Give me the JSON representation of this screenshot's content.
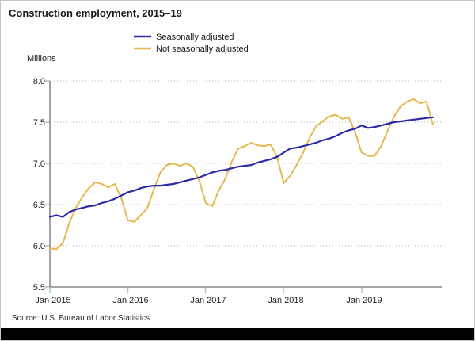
{
  "title": "Construction employment, 2015–19",
  "y_axis_unit": "Millions",
  "source": "Source: U.S. Bureau of Labor Statistics.",
  "y_ticks": [
    "8.0",
    "7.5",
    "7.0",
    "6.5",
    "6.0",
    "5.5"
  ],
  "x_ticks": [
    "Jan 2015",
    "Jan 2016",
    "Jan 2017",
    "Jan 2018",
    "Jan 2019"
  ],
  "legend": [
    {
      "label": "Seasonally adjusted",
      "color": "#2b2baa"
    },
    {
      "label": "Not seasonally adjusted",
      "color": "#e5b84d"
    }
  ],
  "colors": {
    "seasonally_adjusted": "#2b2baa",
    "not_seasonally_adjusted": "#e5b84d",
    "gridline": "#b3b3b3",
    "axis": "#6f6f6f",
    "tick_mark": "#a9c4d5",
    "bottom_bar": "#000000"
  },
  "chart_data": {
    "type": "line",
    "title": "Construction employment, 2015–19",
    "ylabel": "Millions",
    "ylim": [
      5.5,
      8.0
    ],
    "y_tick_step": 0.5,
    "grid": "horizontal dotted",
    "legend_position": "top-center",
    "x_range": {
      "start": "Jan 2015",
      "end": "Dec 2019",
      "interval": "monthly",
      "points": 60
    },
    "x_tick_labels": [
      "Jan 2015",
      "Jan 2016",
      "Jan 2017",
      "Jan 2018",
      "Jan 2019"
    ],
    "series": [
      {
        "name": "Seasonally adjusted",
        "color": "#2b2baa",
        "values": [
          6.35,
          6.37,
          6.35,
          6.41,
          6.44,
          6.46,
          6.48,
          6.49,
          6.52,
          6.54,
          6.57,
          6.61,
          6.65,
          6.67,
          6.7,
          6.72,
          6.73,
          6.73,
          6.74,
          6.75,
          6.77,
          6.79,
          6.81,
          6.83,
          6.86,
          6.89,
          6.91,
          6.92,
          6.94,
          6.96,
          6.97,
          6.98,
          7.01,
          7.03,
          7.05,
          7.08,
          7.13,
          7.18,
          7.19,
          7.21,
          7.23,
          7.25,
          7.28,
          7.3,
          7.33,
          7.37,
          7.4,
          7.42,
          7.46,
          7.43,
          7.44,
          7.46,
          7.48,
          7.5,
          7.51,
          7.52,
          7.53,
          7.54,
          7.55,
          7.56
        ]
      },
      {
        "name": "Not seasonally adjusted",
        "color": "#e5b84d",
        "values": [
          5.97,
          5.96,
          6.03,
          6.28,
          6.46,
          6.59,
          6.7,
          6.77,
          6.75,
          6.71,
          6.75,
          6.58,
          6.31,
          6.29,
          6.37,
          6.46,
          6.68,
          6.89,
          6.98,
          7.0,
          6.97,
          7.0,
          6.96,
          6.79,
          6.52,
          6.48,
          6.67,
          6.81,
          7.02,
          7.18,
          7.21,
          7.25,
          7.22,
          7.21,
          7.23,
          7.08,
          6.76,
          6.85,
          6.98,
          7.13,
          7.31,
          7.45,
          7.51,
          7.57,
          7.59,
          7.54,
          7.56,
          7.38,
          7.13,
          7.09,
          7.09,
          7.21,
          7.39,
          7.57,
          7.69,
          7.75,
          7.78,
          7.73,
          7.75,
          7.47
        ]
      }
    ]
  }
}
